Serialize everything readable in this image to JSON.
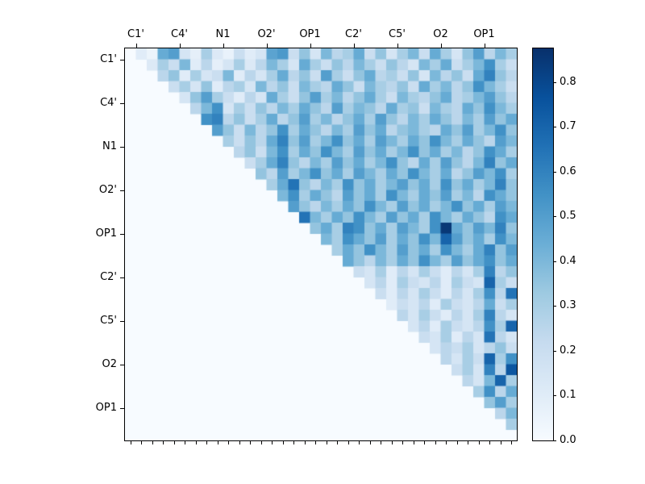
{
  "figure": {
    "background": "#ffffff",
    "frame_color": "#000000"
  },
  "chart_data": {
    "type": "heatmap",
    "title": "",
    "xlabel": "",
    "ylabel": "",
    "n": 36,
    "cells_per_label": 4,
    "x_tick_labels": [
      "C1'",
      "C4'",
      "N1",
      "O2'",
      "OP1",
      "C2'",
      "C5'",
      "O2",
      "OP1"
    ],
    "y_tick_labels": [
      "C1'",
      "C4'",
      "N1",
      "O2'",
      "OP1",
      "C2'",
      "C5'",
      "O2",
      "OP1"
    ],
    "vmin": 0.0,
    "vmax": 0.875,
    "lower_triangle_value": 0.0,
    "diagonal_value": 0.0,
    "colormap": {
      "name": "Blues",
      "stops": [
        [
          0.0,
          "#f7fbff"
        ],
        [
          0.125,
          "#deebf7"
        ],
        [
          0.25,
          "#c6dbef"
        ],
        [
          0.375,
          "#9ecae1"
        ],
        [
          0.5,
          "#6baed6"
        ],
        [
          0.625,
          "#4292c6"
        ],
        [
          0.75,
          "#2171b5"
        ],
        [
          0.875,
          "#08519c"
        ],
        [
          1.0,
          "#08306b"
        ]
      ]
    },
    "colorbar_tick_labels": [
      "0.0",
      "0.1",
      "0.2",
      "0.3",
      "0.4",
      "0.5",
      "0.6",
      "0.7",
      "0.8"
    ],
    "matrix_upper": [
      [
        0.1,
        0.05,
        0.45,
        0.5,
        0.15,
        0.08,
        0.3,
        0.12,
        0.06,
        0.2,
        0.1,
        0.15,
        0.48,
        0.52,
        0.2,
        0.35,
        0.15,
        0.4,
        0.25,
        0.3,
        0.45,
        0.2,
        0.35,
        0.15,
        0.3,
        0.4,
        0.2,
        0.45,
        0.3,
        0.15,
        0.35,
        0.5,
        0.25,
        0.4,
        0.3
      ],
      [
        0.12,
        0.3,
        0.2,
        0.4,
        0.1,
        0.25,
        0.08,
        0.15,
        0.3,
        0.12,
        0.25,
        0.4,
        0.3,
        0.15,
        0.45,
        0.3,
        0.2,
        0.35,
        0.25,
        0.4,
        0.3,
        0.2,
        0.35,
        0.25,
        0.15,
        0.4,
        0.3,
        0.45,
        0.2,
        0.3,
        0.4,
        0.55,
        0.3,
        0.2
      ],
      [
        0.25,
        0.35,
        0.1,
        0.3,
        0.15,
        0.2,
        0.4,
        0.1,
        0.25,
        0.15,
        0.3,
        0.45,
        0.25,
        0.35,
        0.2,
        0.5,
        0.3,
        0.2,
        0.35,
        0.45,
        0.25,
        0.3,
        0.2,
        0.35,
        0.15,
        0.4,
        0.25,
        0.35,
        0.2,
        0.45,
        0.6,
        0.35,
        0.25
      ],
      [
        0.2,
        0.3,
        0.15,
        0.35,
        0.1,
        0.25,
        0.3,
        0.15,
        0.4,
        0.25,
        0.35,
        0.2,
        0.4,
        0.3,
        0.25,
        0.45,
        0.35,
        0.2,
        0.4,
        0.3,
        0.25,
        0.35,
        0.2,
        0.45,
        0.3,
        0.4,
        0.25,
        0.35,
        0.55,
        0.4,
        0.3,
        0.2
      ],
      [
        0.15,
        0.35,
        0.5,
        0.3,
        0.2,
        0.1,
        0.25,
        0.15,
        0.45,
        0.3,
        0.2,
        0.35,
        0.5,
        0.3,
        0.4,
        0.25,
        0.35,
        0.45,
        0.3,
        0.2,
        0.4,
        0.3,
        0.25,
        0.35,
        0.45,
        0.25,
        0.3,
        0.4,
        0.5,
        0.35,
        0.25
      ],
      [
        0.25,
        0.4,
        0.55,
        0.15,
        0.3,
        0.2,
        0.35,
        0.25,
        0.4,
        0.3,
        0.45,
        0.35,
        0.25,
        0.5,
        0.3,
        0.4,
        0.35,
        0.25,
        0.45,
        0.3,
        0.35,
        0.2,
        0.4,
        0.3,
        0.25,
        0.45,
        0.35,
        0.55,
        0.4,
        0.3
      ],
      [
        0.55,
        0.6,
        0.25,
        0.35,
        0.2,
        0.3,
        0.45,
        0.25,
        0.35,
        0.5,
        0.3,
        0.4,
        0.25,
        0.35,
        0.45,
        0.3,
        0.5,
        0.35,
        0.25,
        0.4,
        0.3,
        0.45,
        0.35,
        0.25,
        0.4,
        0.3,
        0.5,
        0.35,
        0.45
      ],
      [
        0.5,
        0.35,
        0.2,
        0.4,
        0.25,
        0.35,
        0.55,
        0.3,
        0.45,
        0.35,
        0.25,
        0.4,
        0.3,
        0.5,
        0.35,
        0.45,
        0.25,
        0.35,
        0.4,
        0.3,
        0.25,
        0.45,
        0.35,
        0.5,
        0.3,
        0.4,
        0.55,
        0.35
      ],
      [
        0.3,
        0.2,
        0.35,
        0.25,
        0.45,
        0.6,
        0.35,
        0.5,
        0.3,
        0.4,
        0.55,
        0.35,
        0.45,
        0.3,
        0.5,
        0.4,
        0.3,
        0.45,
        0.35,
        0.55,
        0.4,
        0.3,
        0.45,
        0.35,
        0.25,
        0.5,
        0.4
      ],
      [
        0.25,
        0.35,
        0.2,
        0.4,
        0.55,
        0.3,
        0.45,
        0.35,
        0.55,
        0.4,
        0.3,
        0.5,
        0.35,
        0.45,
        0.3,
        0.4,
        0.55,
        0.35,
        0.45,
        0.3,
        0.4,
        0.25,
        0.35,
        0.55,
        0.45,
        0.3
      ],
      [
        0.2,
        0.3,
        0.45,
        0.6,
        0.35,
        0.25,
        0.4,
        0.3,
        0.5,
        0.35,
        0.45,
        0.3,
        0.4,
        0.55,
        0.35,
        0.25,
        0.45,
        0.3,
        0.5,
        0.35,
        0.25,
        0.4,
        0.6,
        0.35,
        0.45
      ],
      [
        0.35,
        0.25,
        0.5,
        0.3,
        0.4,
        0.55,
        0.35,
        0.45,
        0.3,
        0.5,
        0.4,
        0.3,
        0.45,
        0.35,
        0.55,
        0.4,
        0.3,
        0.45,
        0.25,
        0.35,
        0.5,
        0.4,
        0.55,
        0.3
      ],
      [
        0.3,
        0.45,
        0.65,
        0.35,
        0.25,
        0.4,
        0.3,
        0.55,
        0.35,
        0.45,
        0.3,
        0.4,
        0.5,
        0.35,
        0.45,
        0.3,
        0.55,
        0.35,
        0.45,
        0.3,
        0.4,
        0.6,
        0.35
      ],
      [
        0.4,
        0.55,
        0.3,
        0.45,
        0.35,
        0.25,
        0.5,
        0.35,
        0.45,
        0.3,
        0.55,
        0.4,
        0.3,
        0.45,
        0.35,
        0.5,
        0.3,
        0.4,
        0.25,
        0.55,
        0.45,
        0.35
      ],
      [
        0.5,
        0.35,
        0.25,
        0.4,
        0.3,
        0.45,
        0.35,
        0.55,
        0.4,
        0.3,
        0.5,
        0.35,
        0.45,
        0.3,
        0.4,
        0.55,
        0.35,
        0.45,
        0.3,
        0.5,
        0.4
      ],
      [
        0.65,
        0.4,
        0.3,
        0.45,
        0.35,
        0.55,
        0.4,
        0.3,
        0.5,
        0.35,
        0.45,
        0.3,
        0.55,
        0.4,
        0.3,
        0.45,
        0.35,
        0.25,
        0.55,
        0.45
      ],
      [
        0.35,
        0.45,
        0.3,
        0.6,
        0.55,
        0.35,
        0.45,
        0.3,
        0.5,
        0.4,
        0.3,
        0.55,
        0.85,
        0.45,
        0.35,
        0.5,
        0.4,
        0.6,
        0.35
      ],
      [
        0.4,
        0.3,
        0.55,
        0.45,
        0.35,
        0.5,
        0.3,
        0.45,
        0.35,
        0.55,
        0.4,
        0.7,
        0.5,
        0.35,
        0.45,
        0.3,
        0.55,
        0.4
      ],
      [
        0.3,
        0.45,
        0.35,
        0.55,
        0.4,
        0.3,
        0.5,
        0.35,
        0.45,
        0.3,
        0.55,
        0.4,
        0.3,
        0.45,
        0.6,
        0.35,
        0.5
      ],
      [
        0.45,
        0.35,
        0.25,
        0.4,
        0.3,
        0.45,
        0.35,
        0.55,
        0.4,
        0.3,
        0.5,
        0.35,
        0.45,
        0.55,
        0.35,
        0.45
      ],
      [
        0.2,
        0.15,
        0.3,
        0.1,
        0.25,
        0.15,
        0.3,
        0.2,
        0.1,
        0.25,
        0.15,
        0.3,
        0.6,
        0.25,
        0.35
      ],
      [
        0.15,
        0.25,
        0.1,
        0.3,
        0.2,
        0.15,
        0.25,
        0.1,
        0.3,
        0.2,
        0.15,
        0.7,
        0.3,
        0.2
      ],
      [
        0.2,
        0.1,
        0.25,
        0.15,
        0.3,
        0.2,
        0.1,
        0.25,
        0.15,
        0.3,
        0.55,
        0.25,
        0.65
      ],
      [
        0.1,
        0.2,
        0.15,
        0.25,
        0.1,
        0.3,
        0.2,
        0.15,
        0.25,
        0.45,
        0.2,
        0.3
      ],
      [
        0.25,
        0.15,
        0.3,
        0.2,
        0.1,
        0.25,
        0.15,
        0.3,
        0.6,
        0.25,
        0.15
      ],
      [
        0.15,
        0.25,
        0.1,
        0.3,
        0.2,
        0.15,
        0.25,
        0.55,
        0.3,
        0.7
      ],
      [
        0.2,
        0.15,
        0.3,
        0.1,
        0.25,
        0.15,
        0.65,
        0.25,
        0.15
      ],
      [
        0.15,
        0.25,
        0.2,
        0.3,
        0.15,
        0.25,
        0.35,
        0.2
      ],
      [
        0.25,
        0.15,
        0.3,
        0.2,
        0.7,
        0.3,
        0.55
      ],
      [
        0.2,
        0.3,
        0.15,
        0.6,
        0.25,
        0.75
      ],
      [
        0.25,
        0.15,
        0.4,
        0.7,
        0.3
      ],
      [
        0.3,
        0.55,
        0.25,
        0.45
      ],
      [
        0.35,
        0.5,
        0.3
      ],
      [
        0.25,
        0.4
      ],
      [
        0.3
      ],
      []
    ]
  }
}
